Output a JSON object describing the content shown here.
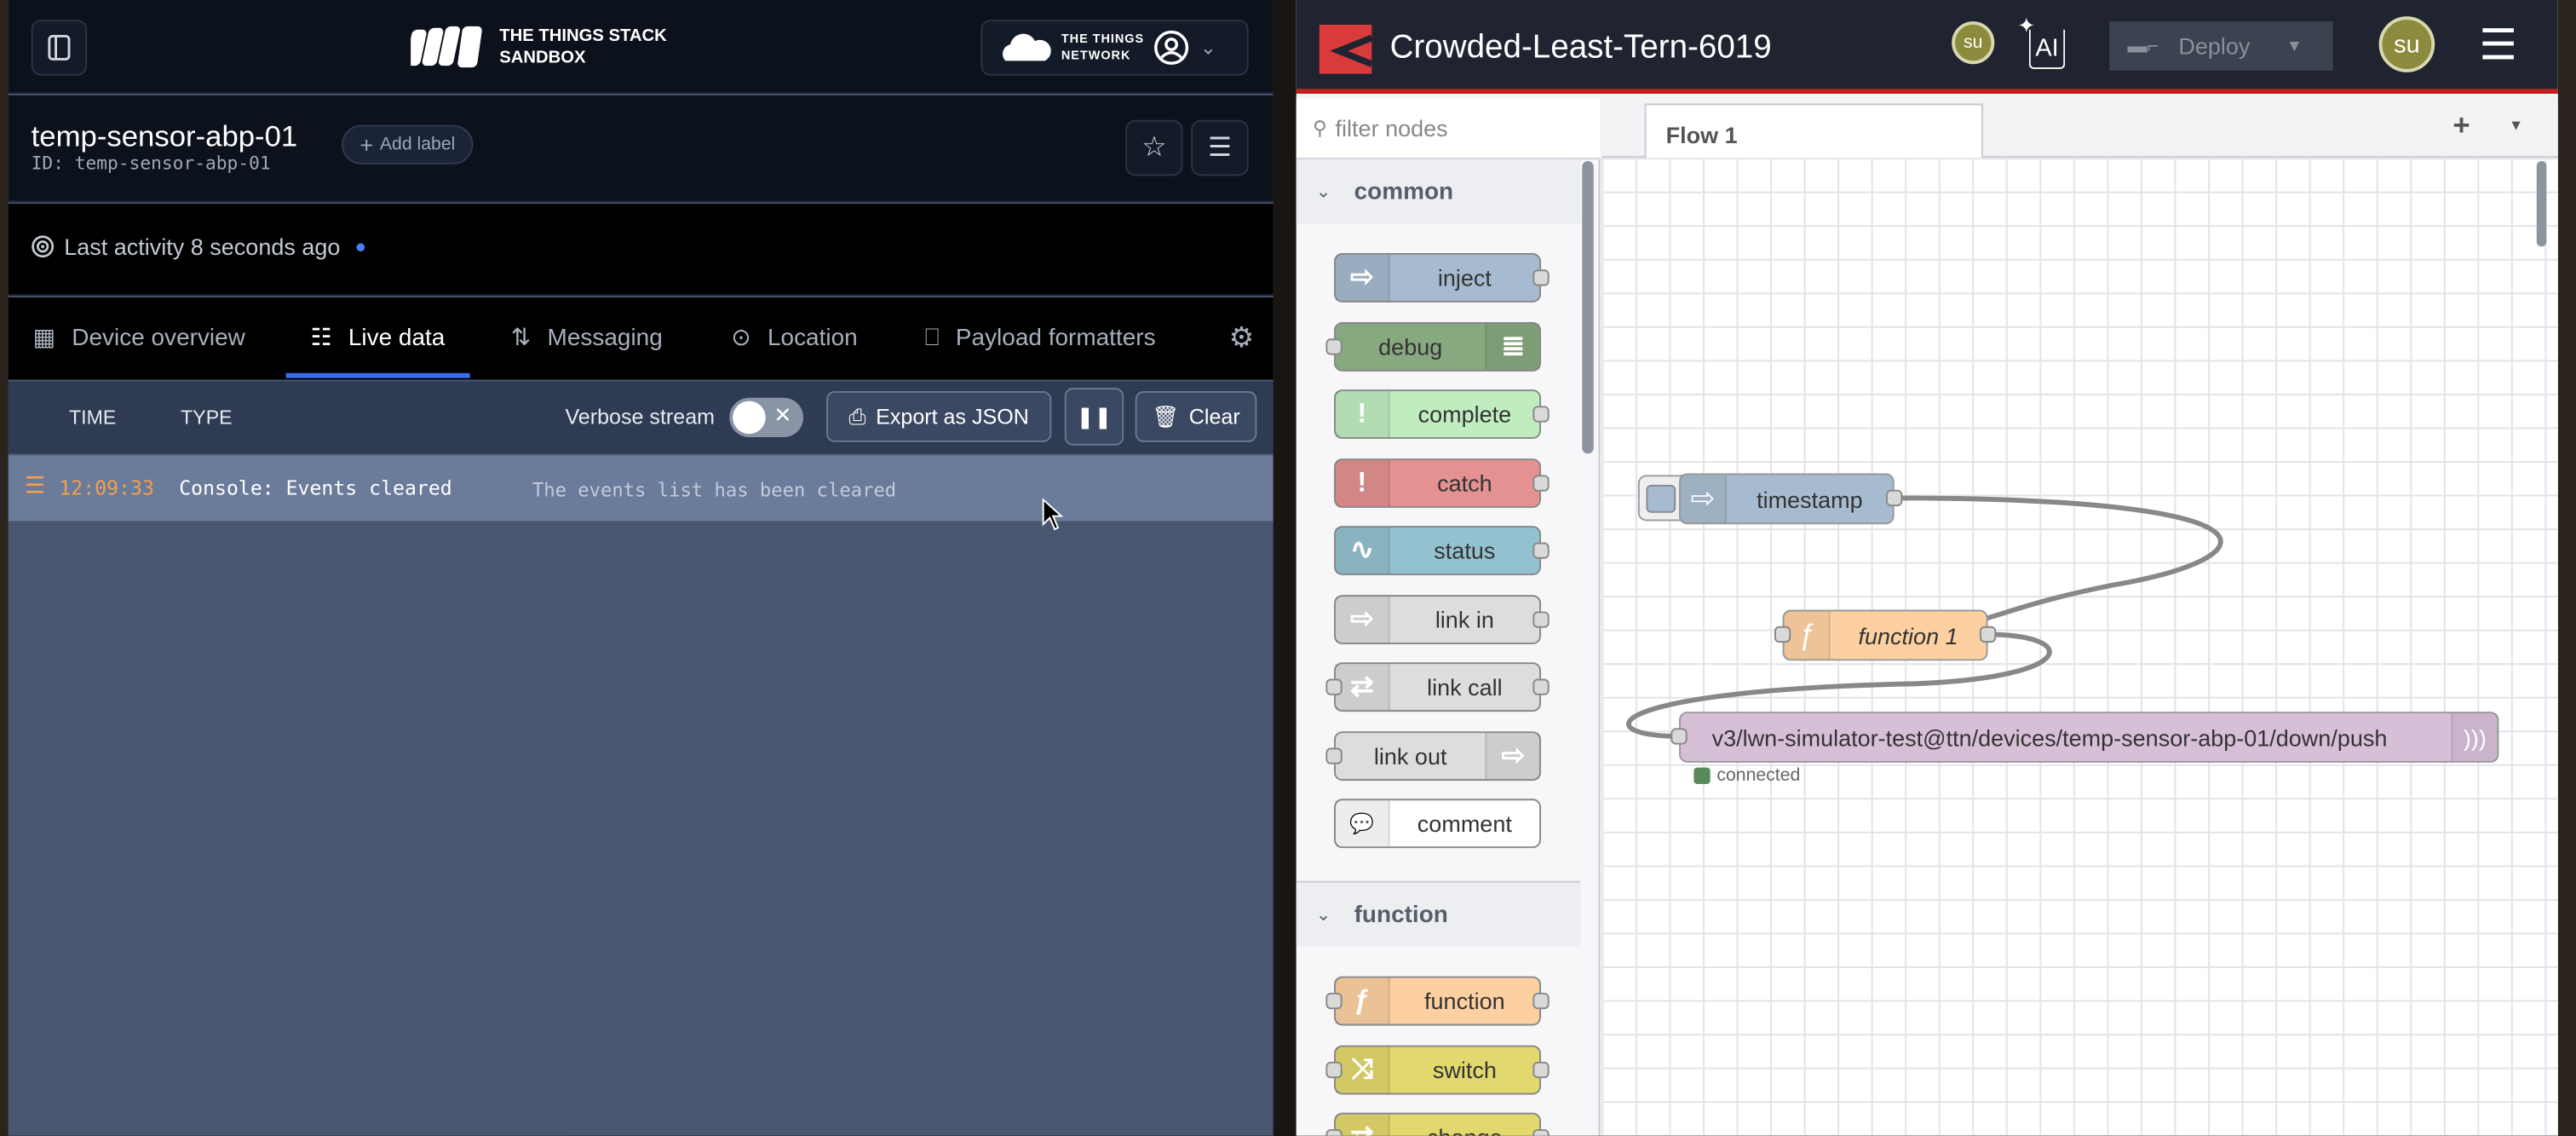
{
  "ttn": {
    "logo_text": [
      "THE THINGS STACK",
      "SANDBOX"
    ],
    "network_logo_text": [
      "THE THINGS",
      "NETWORK"
    ],
    "device_name": "temp-sensor-abp-01",
    "device_id": "ID: temp-sensor-abp-01",
    "add_label": "Add label",
    "last_activity": "Last activity 8 seconds ago",
    "tabs": [
      {
        "label": "Device overview",
        "icon": "grid-icon"
      },
      {
        "label": "Live data",
        "icon": "list-icon",
        "active": true
      },
      {
        "label": "Messaging",
        "icon": "arrows-updown-icon"
      },
      {
        "label": "Location",
        "icon": "pin-icon"
      },
      {
        "label": "Payload formatters",
        "icon": "code-file-icon"
      }
    ],
    "columns": {
      "time": "TIME",
      "type": "TYPE"
    },
    "verbose_label": "Verbose stream",
    "verbose_on": false,
    "export_label": "Export as JSON",
    "clear_label": "Clear",
    "events": [
      {
        "time": "12:09:33",
        "type": "Console: Events cleared",
        "description": "The events list has been cleared"
      }
    ],
    "accent": "#3b6ff0"
  },
  "nodered": {
    "title": "Crowded-Least-Tern-6019",
    "user_initials": "su",
    "ai_label": "AI",
    "deploy_label": "Deploy",
    "filter_placeholder": "filter nodes",
    "flow_tab": "Flow 1",
    "categories": [
      {
        "name": "common",
        "nodes": [
          {
            "label": "inject",
            "color": "#a6bbcf"
          },
          {
            "label": "debug",
            "color": "#87a980"
          },
          {
            "label": "complete",
            "color": "#c0edc0"
          },
          {
            "label": "catch",
            "color": "#e49191"
          },
          {
            "label": "status",
            "color": "#94c1d0"
          },
          {
            "label": "link in",
            "color": "#dddddd"
          },
          {
            "label": "link call",
            "color": "#dddddd"
          },
          {
            "label": "link out",
            "color": "#dddddd"
          },
          {
            "label": "comment",
            "color": "#ffffff"
          }
        ]
      },
      {
        "name": "function",
        "nodes": [
          {
            "label": "function",
            "color": "#fdd0a2"
          },
          {
            "label": "switch",
            "color": "#e2d96e"
          },
          {
            "label": "change",
            "color": "#e2d96e"
          }
        ]
      }
    ],
    "flow_nodes": {
      "timestamp": "timestamp",
      "function": "function 1",
      "mqtt_out": "v3/lwn-simulator-test@ttn/devices/temp-sensor-abp-01/down/push",
      "mqtt_status": "connected"
    }
  }
}
